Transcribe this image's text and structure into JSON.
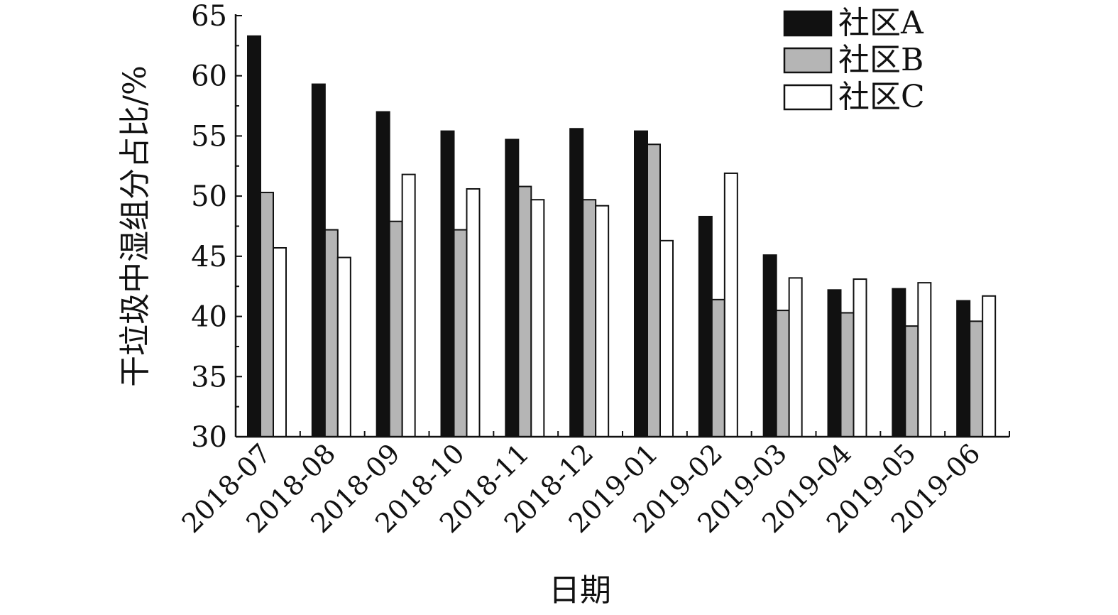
{
  "chart_data": {
    "type": "bar",
    "xlabel": "日期",
    "ylabel": "干垃圾中湿组分占比/%",
    "ylim": [
      30,
      65
    ],
    "yticks": [
      30,
      35,
      40,
      45,
      50,
      55,
      60,
      65
    ],
    "grid": false,
    "legend_position": "top-right",
    "categories": [
      "2018-07",
      "2018-08",
      "2018-09",
      "2018-10",
      "2018-11",
      "2018-12",
      "2019-01",
      "2019-02",
      "2019-03",
      "2019-04",
      "2019-05",
      "2019-06"
    ],
    "series": [
      {
        "name": "社区A",
        "color": "#111111",
        "values": [
          63.3,
          59.3,
          57.0,
          55.4,
          54.7,
          55.6,
          55.4,
          48.3,
          45.1,
          42.2,
          42.3,
          41.3
        ]
      },
      {
        "name": "社区B",
        "color": "#b5b5b5",
        "values": [
          50.3,
          47.2,
          47.9,
          47.2,
          50.8,
          49.7,
          54.3,
          41.4,
          40.5,
          40.3,
          39.2,
          39.6
        ]
      },
      {
        "name": "社区C",
        "color": "#ffffff",
        "values": [
          45.7,
          44.9,
          51.8,
          50.6,
          49.7,
          49.2,
          46.3,
          51.9,
          43.2,
          43.1,
          42.8,
          41.7
        ]
      }
    ]
  }
}
